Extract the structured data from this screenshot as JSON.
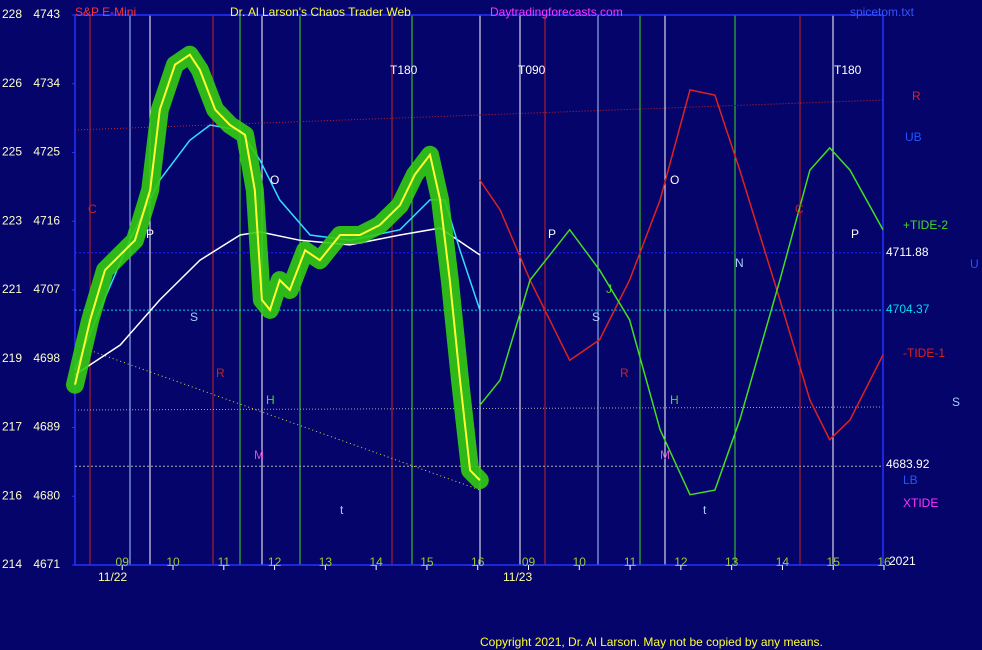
{
  "chart_data": {
    "type": "line",
    "title": "Dr. Al Larson's Chaos Trader Web",
    "subtitle": "S&P E-Mini",
    "site": "Daytradingforecasts.com",
    "file": "spicetom.txt",
    "copyright": "Copyright 2021, Dr. Al Larson. May not be copied by any means.",
    "ylim": [
      4671,
      4743
    ],
    "yticks": [
      {
        "value": 4743,
        "label": "228 4743"
      },
      {
        "value": 4734,
        "label": "226 4734"
      },
      {
        "value": 4725,
        "label": "225 4725"
      },
      {
        "value": 4716,
        "label": "223 4716"
      },
      {
        "value": 4707,
        "label": "221 4707"
      },
      {
        "value": 4698,
        "label": "219 4698"
      },
      {
        "value": 4689,
        "label": "217 4689"
      },
      {
        "value": 4680,
        "label": "216 4680"
      },
      {
        "value": 4671,
        "label": "214 4671"
      }
    ],
    "xlim": [
      8.07,
      23.98
    ],
    "xticks": [
      {
        "value": 9,
        "label": "09"
      },
      10,
      11,
      12,
      13,
      14,
      15,
      16,
      {
        "value": 17,
        "label": "09"
      },
      {
        "value": 18,
        "label": "10"
      },
      {
        "value": 19,
        "label": "11"
      },
      {
        "value": 20,
        "label": "12"
      },
      {
        "value": 21,
        "label": "13"
      },
      {
        "value": 22,
        "label": "14"
      },
      {
        "value": 23,
        "label": "15"
      },
      {
        "value": 24,
        "label": "16"
      }
    ],
    "dates": [
      "11/22",
      "11/23"
    ],
    "series": [
      {
        "name": "White average",
        "color": "#ffffff",
        "x": [
          8.07,
          8.96,
          9.74,
          10.53,
          11.32,
          11.71,
          12.5,
          13.48,
          14.47,
          15.26,
          16.04
        ],
        "values": [
          4695.9,
          4699.8,
          4705.7,
          4710.9,
          4714.2,
          4714.6,
          4713.5,
          4712.9,
          4714.2,
          4715.1,
          4711.6
        ]
      },
      {
        "name": "Cyan average",
        "color": "#33ddff",
        "x": [
          8.07,
          8.56,
          9.15,
          9.74,
          10.33,
          10.73,
          11.32,
          11.71,
          12.1,
          12.7,
          13.48,
          14.47,
          15.06,
          15.35,
          15.65,
          16.04
        ],
        "values": [
          4696.5,
          4704.4,
          4713.5,
          4721.4,
          4726.6,
          4728.6,
          4727.9,
          4724.0,
          4718.8,
          4714.2,
          4713.5,
          4714.9,
          4718.8,
          4718.8,
          4712.2,
          4704.4
        ]
      },
      {
        "name": "Price",
        "color": "#ffff33",
        "x": [
          8.07,
          8.37,
          8.66,
          8.96,
          9.25,
          9.55,
          9.74,
          10.04,
          10.33,
          10.53,
          10.83,
          11.12,
          11.42,
          11.61,
          11.75,
          11.91,
          12.1,
          12.3,
          12.6,
          12.89,
          13.29,
          13.68,
          14.07,
          14.47,
          14.76,
          15.06,
          15.26,
          15.45,
          15.65,
          15.85,
          16.04
        ],
        "values": [
          4694.6,
          4703.1,
          4709.6,
          4711.6,
          4713.5,
          4720.1,
          4730.6,
          4736.5,
          4737.8,
          4735.8,
          4730.6,
          4728.6,
          4727.3,
          4720.1,
          4705.7,
          4704.4,
          4708.3,
          4707.0,
          4712.2,
          4710.9,
          4714.2,
          4714.2,
          4715.5,
          4718.1,
          4722.1,
          4724.7,
          4718.8,
          4708.3,
          4695.2,
          4683.4,
          4682.1
        ]
      },
      {
        "name": "-TIDE-1",
        "color": "#dd2222",
        "x": [
          16.04,
          16.44,
          17.03,
          17.81,
          18.4,
          18.99,
          19.59,
          20.18,
          20.67,
          21.16,
          21.95,
          22.54,
          22.93,
          23.33,
          23.98
        ],
        "values": [
          4721.4,
          4717.5,
          4708.3,
          4697.8,
          4700.5,
          4708.3,
          4718.8,
          4733.2,
          4732.5,
          4722.7,
          4705.7,
          4692.6,
          4687.4,
          4690.0,
          4698.5
        ]
      },
      {
        "name": "+TIDE-2",
        "color": "#44dd22",
        "x": [
          16.04,
          16.44,
          17.03,
          17.81,
          18.4,
          18.99,
          19.59,
          20.18,
          20.67,
          21.16,
          21.95,
          22.54,
          22.93,
          23.33,
          23.98
        ],
        "values": [
          4691.9,
          4695.2,
          4708.3,
          4714.9,
          4709.6,
          4703.1,
          4688.7,
          4680.2,
          4680.8,
          4690.0,
          4708.3,
          4722.7,
          4725.6,
          4722.7,
          4714.9
        ]
      }
    ],
    "levels": [
      {
        "value": 4711.88,
        "color": "#2222ff"
      },
      {
        "value": 4704.37,
        "color": "#00ccee"
      },
      {
        "value": 4683.92,
        "color": "#aaaaaa"
      }
    ],
    "labels": [
      "C",
      "P",
      "S",
      "R",
      "O",
      "H",
      "M",
      "t",
      "J",
      "P",
      "S",
      "R",
      "O",
      "H",
      "M",
      "t",
      "N",
      "C",
      "P",
      "T180",
      "T090",
      "T180"
    ],
    "right_labels": [
      "R",
      "UB",
      "+TIDE-2",
      "4711.88",
      "N",
      "U",
      "4704.37",
      "-TIDE-1",
      "S",
      "4683.92",
      "LB",
      "XTIDE",
      "2021"
    ]
  }
}
